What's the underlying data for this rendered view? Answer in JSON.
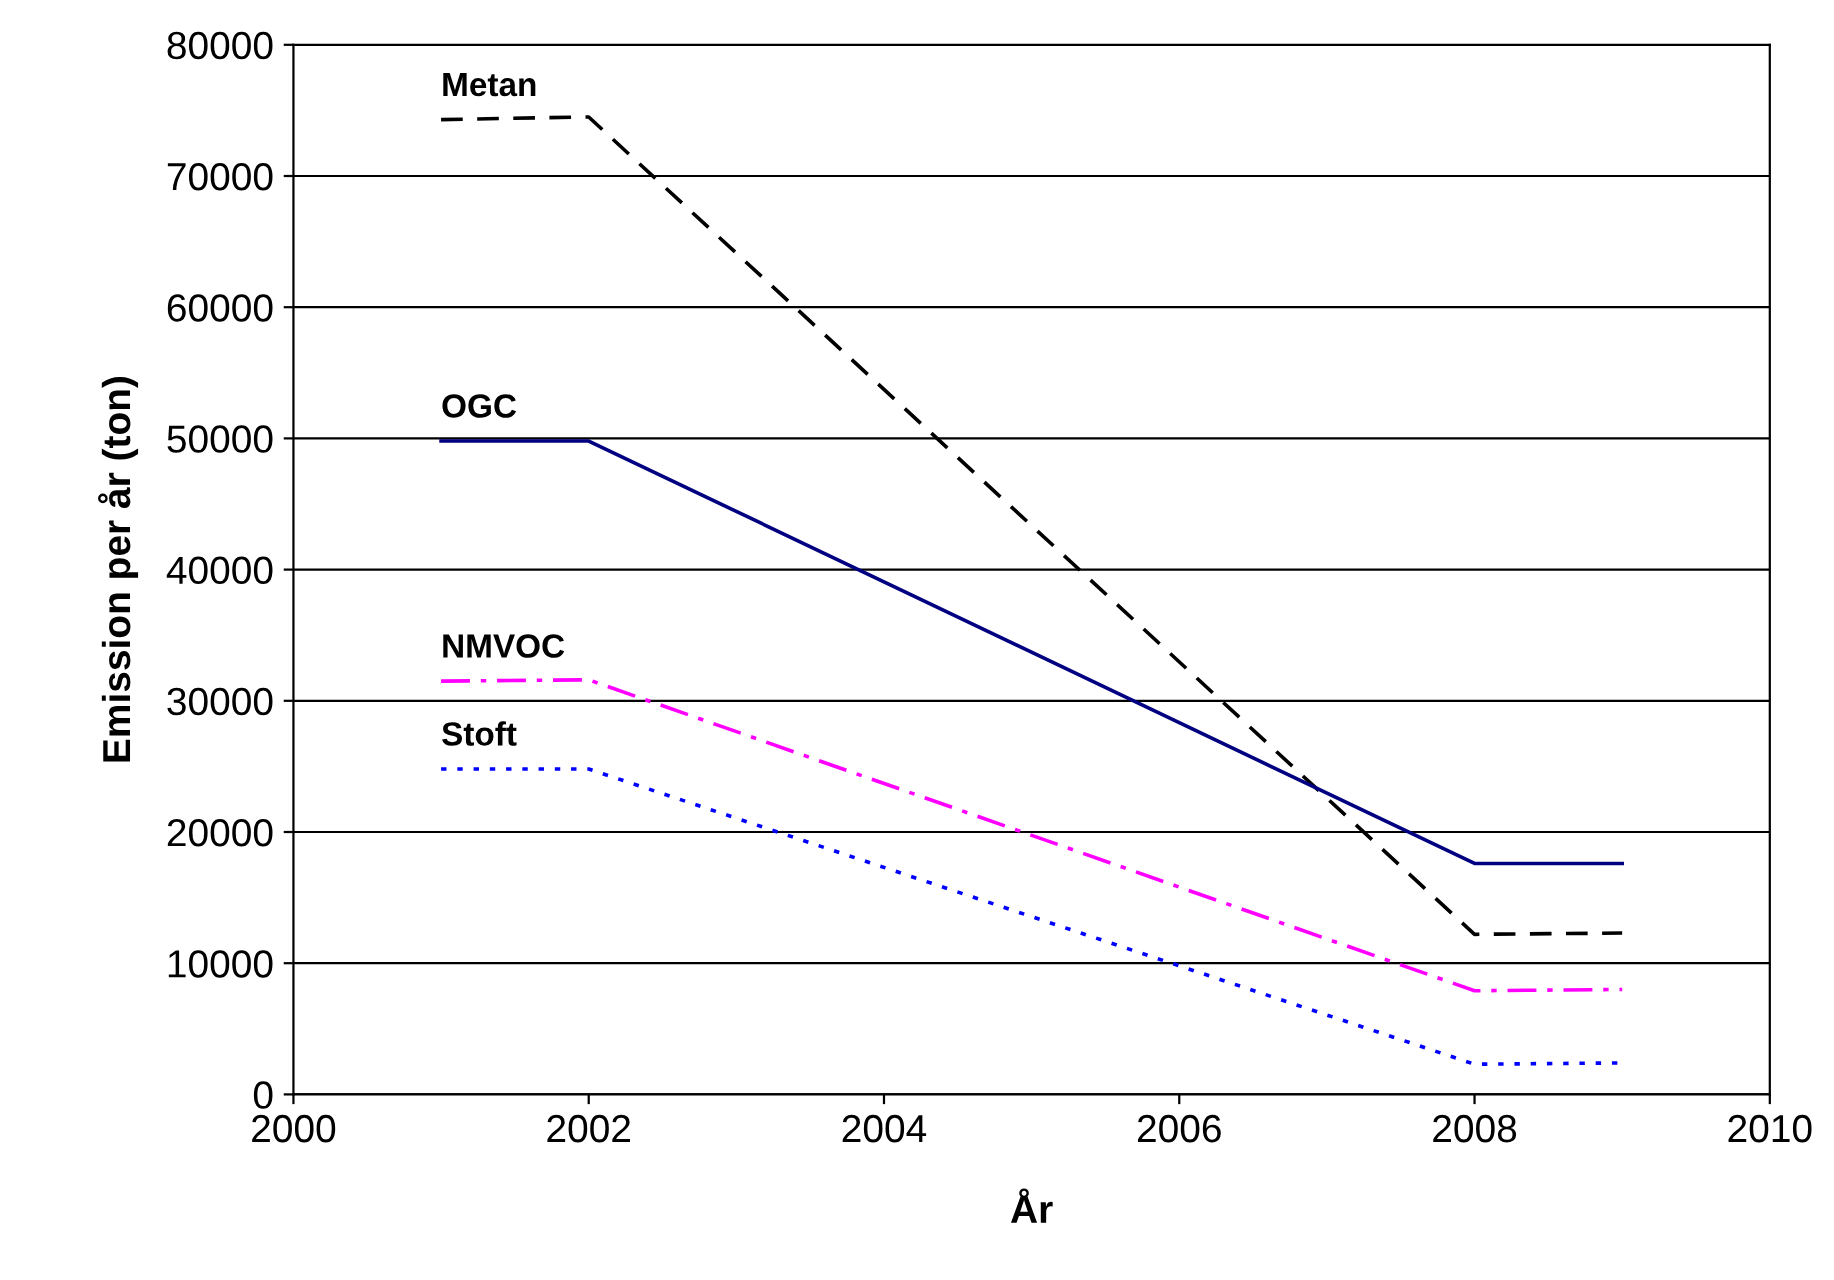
{
  "chart_data": {
    "type": "line",
    "xlabel": "År",
    "ylabel": "Emission per år (ton)",
    "xlim": [
      2000,
      2010
    ],
    "xticks": [
      2000,
      2002,
      2004,
      2006,
      2008,
      2010
    ],
    "ylim": [
      0,
      80000
    ],
    "yticks": [
      0,
      10000,
      20000,
      30000,
      40000,
      50000,
      60000,
      70000,
      80000
    ],
    "grid": "y",
    "legend": false,
    "marker": "none",
    "series": [
      {
        "name": "Metan",
        "color": "#000000",
        "line_style": "dashed",
        "x": [
          2001,
          2002,
          2008,
          2009
        ],
        "values": [
          74300,
          74500,
          12200,
          12300
        ]
      },
      {
        "name": "OGC",
        "color": "#000080",
        "line_style": "solid",
        "x": [
          2001,
          2002,
          2008,
          2009
        ],
        "values": [
          49800,
          49800,
          17600,
          17600
        ]
      },
      {
        "name": "NMVOC",
        "color": "#ff00ff",
        "line_style": "dashdot",
        "x": [
          2001,
          2002,
          2008,
          2009
        ],
        "values": [
          31500,
          31600,
          7900,
          8000
        ]
      },
      {
        "name": "Stoft",
        "color": "#0000ff",
        "line_style": "dotted",
        "x": [
          2001,
          2002,
          2008,
          2009
        ],
        "values": [
          24800,
          24800,
          2300,
          2400
        ]
      }
    ]
  }
}
